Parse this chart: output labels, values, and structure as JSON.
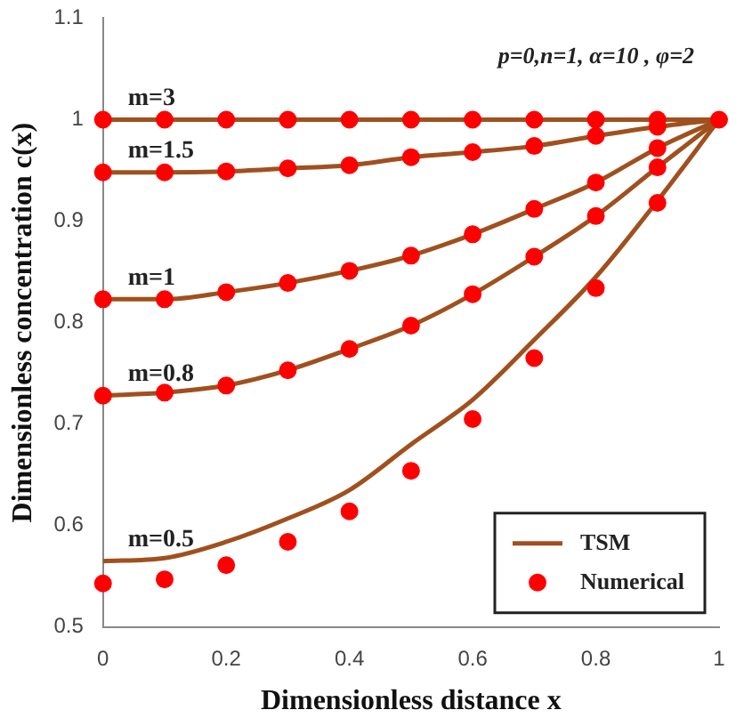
{
  "chart_data": {
    "type": "line",
    "xlabel": "Dimensionless distance x",
    "ylabel": "Dimensionless concentration c(x)",
    "x": [
      0,
      0.1,
      0.2,
      0.3,
      0.4,
      0.5,
      0.6,
      0.7,
      0.8,
      0.9,
      1
    ],
    "xlim": [
      0,
      1
    ],
    "xticks": [
      0,
      0.2,
      0.4,
      0.6,
      0.8,
      1
    ],
    "ylim": [
      0.5,
      1.1
    ],
    "yticks": [
      0.5,
      0.6,
      0.7,
      0.8,
      0.9,
      1,
      1.1
    ],
    "grid": false,
    "legend": "bottom right",
    "series": [
      {
        "name": "TSM",
        "marker": "none",
        "color": "#a0501e",
        "values": [
          1,
          1,
          1,
          1,
          1,
          1,
          1,
          1,
          1,
          1,
          1
        ]
      },
      {
        "marker": "none",
        "color": "#a0501e",
        "values": [
          0.948,
          0.948,
          0.949,
          0.952,
          0.955,
          0.963,
          0.968,
          0.974,
          0.984,
          0.993,
          1
        ]
      },
      {
        "marker": "none",
        "color": "#a0501e",
        "values": [
          0.823,
          0.823,
          0.83,
          0.839,
          0.851,
          0.866,
          0.887,
          0.912,
          0.938,
          0.972,
          1
        ]
      },
      {
        "marker": "none",
        "color": "#a0501e",
        "values": [
          0.728,
          0.731,
          0.738,
          0.753,
          0.774,
          0.797,
          0.828,
          0.865,
          0.905,
          0.953,
          1
        ]
      },
      {
        "marker": "none",
        "color": "#a0501e",
        "values": [
          0.565,
          0.568,
          0.584,
          0.607,
          0.635,
          0.68,
          0.724,
          0.783,
          0.845,
          0.92,
          1
        ]
      },
      {
        "name": "Numerical",
        "type": "scatter",
        "marker": "circle",
        "color": "#ff0000",
        "values": [
          1,
          1,
          1,
          1,
          1,
          1,
          1,
          1,
          1,
          1,
          1
        ]
      },
      {
        "type": "scatter",
        "marker": "circle",
        "color": "#ff0000",
        "values": [
          0.948,
          0.948,
          0.949,
          0.952,
          0.955,
          0.963,
          0.968,
          0.974,
          0.984,
          0.993,
          null
        ]
      },
      {
        "type": "scatter",
        "marker": "circle",
        "color": "#ff0000",
        "values": [
          0.823,
          0.823,
          0.83,
          0.839,
          0.851,
          0.866,
          0.887,
          0.912,
          0.938,
          0.972,
          null
        ]
      },
      {
        "type": "scatter",
        "marker": "circle",
        "color": "#ff0000",
        "values": [
          0.728,
          0.731,
          0.738,
          0.753,
          0.774,
          0.797,
          0.828,
          0.865,
          0.905,
          0.953,
          null
        ]
      },
      {
        "type": "scatter",
        "marker": "circle",
        "color": "#ff0000",
        "values": [
          0.543,
          0.547,
          0.561,
          0.584,
          0.614,
          0.654,
          0.705,
          0.765,
          0.834,
          0.918,
          null
        ]
      }
    ],
    "annotations": [
      "p=0,n=1, α=10 , φ=2",
      "m=3",
      "m=1.5",
      "m=1",
      "m=0.8",
      "m=0.5"
    ]
  }
}
